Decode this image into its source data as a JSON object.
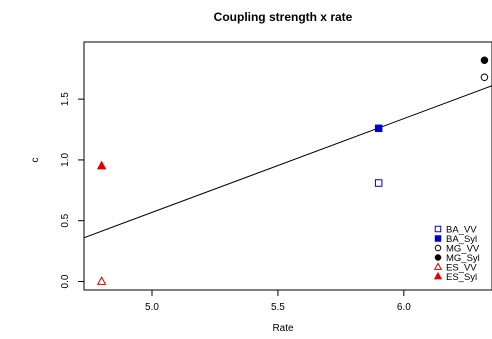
{
  "chart_data": {
    "type": "scatter",
    "title": "Coupling strength x rate",
    "xlabel": "Rate",
    "ylabel": "c",
    "xlim": [
      4.73,
      6.35
    ],
    "ylim": [
      -0.07,
      1.97
    ],
    "xticks": [
      5.0,
      5.5,
      6.0
    ],
    "xtick_labels": [
      "5.0",
      "5.5",
      "6.0"
    ],
    "yticks": [
      0.0,
      0.5,
      1.0,
      1.5
    ],
    "ytick_labels": [
      "0.0",
      "0.5",
      "1.0",
      "1.5"
    ],
    "grid": false,
    "legend_position": "bottom-right",
    "series": [
      {
        "name": "BA_VV",
        "marker": "open-square",
        "color": "#0000cc",
        "points": [
          [
            5.9,
            0.81
          ]
        ]
      },
      {
        "name": "BA_Syl",
        "marker": "filled-square",
        "color": "#0000cc",
        "points": [
          [
            5.9,
            1.26
          ]
        ]
      },
      {
        "name": "MG_VV",
        "marker": "open-circle",
        "color": "#000000",
        "points": [
          [
            6.32,
            1.68
          ]
        ]
      },
      {
        "name": "MG_Syl",
        "marker": "filled-circle",
        "color": "#000000",
        "points": [
          [
            6.32,
            1.82
          ]
        ]
      },
      {
        "name": "ES_VV",
        "marker": "open-triangle",
        "color": "#dd0000",
        "points": [
          [
            4.8,
            0.0
          ]
        ]
      },
      {
        "name": "ES_Syl",
        "marker": "filled-triangle",
        "color": "#dd0000",
        "points": [
          [
            4.8,
            0.95
          ]
        ]
      }
    ],
    "fit_line": {
      "x": [
        4.73,
        6.35
      ],
      "y": [
        0.36,
        1.61
      ]
    }
  }
}
